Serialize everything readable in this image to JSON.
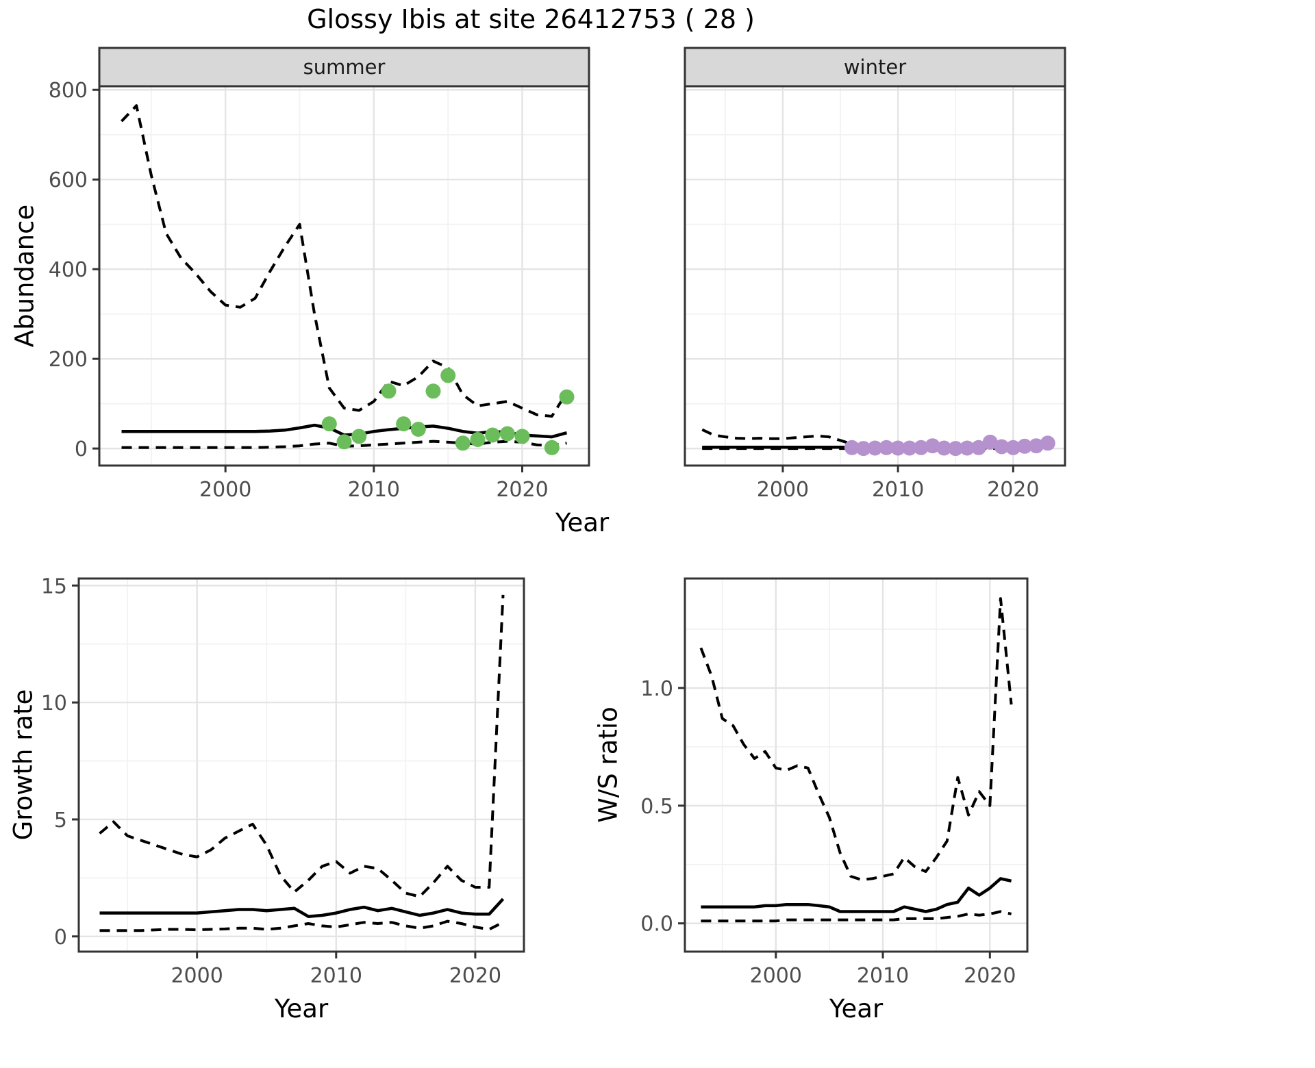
{
  "title": "Glossy Ibis at site 26412753 ( 28 )",
  "axes": {
    "x": "Year",
    "abundance": "Abundance",
    "growth": "Growth rate",
    "ws": "W/S ratio"
  },
  "facets": {
    "summer": "summer",
    "winter": "winter"
  },
  "colors": {
    "summer_point": "#6BBD5B",
    "winter_point": "#B592CE",
    "line": "#000000",
    "strip_bg": "#D8D8D8",
    "panel_bg": "#FFFFFF",
    "grid_major": "#E4E4E4",
    "grid_minor": "#F2F2F2",
    "border": "#333333",
    "tick_text": "#4D4D4D"
  },
  "chart_data": [
    {
      "id": "abundance_summer",
      "type": "line",
      "facet_label": "summer",
      "xlabel": "Year",
      "ylabel": "Abundance",
      "xlim": [
        1991.5,
        2024.5
      ],
      "ylim": [
        -38,
        808
      ],
      "xticks": {
        "values": [
          2000,
          2010,
          2020
        ],
        "labels": [
          "2000",
          "2010",
          "2020"
        ]
      },
      "yticks": {
        "values": [
          0,
          200,
          400,
          600,
          800
        ],
        "labels": [
          "0",
          "200",
          "400",
          "600",
          "800"
        ]
      },
      "xminor": [
        1995,
        2005,
        2015
      ],
      "yminor": [
        100,
        300,
        500,
        700
      ],
      "years": [
        1993,
        1994,
        1995,
        1996,
        1997,
        1998,
        1999,
        2000,
        2001,
        2002,
        2003,
        2004,
        2005,
        2006,
        2007,
        2008,
        2009,
        2010,
        2011,
        2012,
        2013,
        2014,
        2015,
        2016,
        2017,
        2018,
        2019,
        2020,
        2021,
        2022,
        2023
      ],
      "series": [
        {
          "name": "ci_upper",
          "style": "dashed",
          "values": [
            730,
            765,
            610,
            480,
            425,
            390,
            350,
            320,
            315,
            335,
            395,
            450,
            500,
            300,
            135,
            90,
            85,
            105,
            150,
            140,
            160,
            195,
            180,
            120,
            95,
            100,
            105,
            90,
            75,
            72,
            125
          ]
        },
        {
          "name": "median",
          "style": "solid",
          "values": [
            38,
            38,
            38,
            38,
            38,
            38,
            38,
            38,
            38,
            38,
            39,
            41,
            46,
            52,
            46,
            30,
            32,
            38,
            42,
            45,
            48,
            50,
            45,
            38,
            34,
            38,
            36,
            30,
            28,
            26,
            35
          ]
        },
        {
          "name": "ci_lower",
          "style": "dashed",
          "values": [
            2,
            2,
            2,
            2,
            2,
            2,
            2,
            2,
            2,
            2,
            3,
            4,
            6,
            10,
            12,
            5,
            6,
            8,
            10,
            12,
            14,
            16,
            14,
            12,
            10,
            14,
            16,
            14,
            8,
            7,
            12
          ]
        }
      ],
      "points": {
        "name": "observed_counts",
        "color": "#6BBD5B",
        "data": [
          [
            2007,
            55
          ],
          [
            2008,
            15
          ],
          [
            2009,
            27
          ],
          [
            2011,
            128
          ],
          [
            2012,
            55
          ],
          [
            2013,
            43
          ],
          [
            2014,
            128
          ],
          [
            2015,
            163
          ],
          [
            2016,
            12
          ],
          [
            2017,
            20
          ],
          [
            2018,
            30
          ],
          [
            2019,
            33
          ],
          [
            2020,
            27
          ],
          [
            2022,
            2
          ],
          [
            2023,
            115
          ]
        ]
      }
    },
    {
      "id": "abundance_winter",
      "type": "line",
      "facet_label": "winter",
      "xlabel": "Year",
      "ylabel": "Abundance",
      "xlim": [
        1991.5,
        2024.5
      ],
      "ylim": [
        -38,
        808
      ],
      "xticks": {
        "values": [
          2000,
          2010,
          2020
        ],
        "labels": [
          "2000",
          "2010",
          "2020"
        ]
      },
      "yticks": {
        "values": [
          0,
          200,
          400,
          600,
          800
        ],
        "labels": [
          "0",
          "200",
          "400",
          "600",
          "800"
        ]
      },
      "xminor": [
        1995,
        2005,
        2015
      ],
      "yminor": [
        100,
        300,
        500,
        700
      ],
      "years": [
        1993,
        1994,
        1995,
        1996,
        1997,
        1998,
        1999,
        2000,
        2001,
        2002,
        2003,
        2004,
        2005,
        2006,
        2007,
        2008,
        2009,
        2010,
        2011,
        2012,
        2013,
        2014,
        2015,
        2016,
        2017,
        2018,
        2019,
        2020,
        2021,
        2022,
        2023
      ],
      "series": [
        {
          "name": "ci_upper",
          "style": "dashed",
          "values": [
            42,
            30,
            26,
            23,
            22,
            23,
            22,
            22,
            24,
            26,
            28,
            26,
            18,
            10,
            8,
            7,
            7,
            7,
            7,
            8,
            10,
            7,
            6,
            6,
            7,
            15,
            8,
            8,
            9,
            10,
            16
          ]
        },
        {
          "name": "median",
          "style": "solid",
          "values": [
            3,
            3,
            3,
            3,
            3,
            3,
            3,
            3,
            3,
            3,
            3,
            3,
            3,
            2,
            2,
            2,
            2,
            2,
            2,
            2,
            2,
            2,
            2,
            2,
            2,
            3,
            3,
            3,
            3,
            4,
            5
          ]
        },
        {
          "name": "ci_lower",
          "style": "dashed",
          "values": [
            0,
            0,
            0,
            0,
            0,
            0,
            0,
            0,
            0,
            0,
            0,
            0,
            0,
            0,
            0,
            0,
            0,
            0,
            0,
            0,
            0,
            0,
            0,
            0,
            0,
            0,
            0,
            0,
            0,
            0,
            0
          ]
        }
      ],
      "points": {
        "name": "observed_counts",
        "color": "#B592CE",
        "data": [
          [
            2006,
            2
          ],
          [
            2007,
            0
          ],
          [
            2008,
            1
          ],
          [
            2009,
            2
          ],
          [
            2010,
            1
          ],
          [
            2011,
            1
          ],
          [
            2012,
            2
          ],
          [
            2013,
            6
          ],
          [
            2014,
            1
          ],
          [
            2015,
            0
          ],
          [
            2016,
            1
          ],
          [
            2017,
            2
          ],
          [
            2018,
            14
          ],
          [
            2019,
            4
          ],
          [
            2020,
            2
          ],
          [
            2021,
            5
          ],
          [
            2022,
            6
          ],
          [
            2023,
            12
          ]
        ]
      }
    },
    {
      "id": "growth_rate",
      "type": "line",
      "facet_label": null,
      "xlabel": "Year",
      "ylabel": "Growth rate",
      "xlim": [
        1991.5,
        2023.5
      ],
      "ylim": [
        -0.65,
        15.3
      ],
      "xticks": {
        "values": [
          2000,
          2010,
          2020
        ],
        "labels": [
          "2000",
          "2010",
          "2020"
        ]
      },
      "yticks": {
        "values": [
          0,
          5,
          10,
          15
        ],
        "labels": [
          "0",
          "5",
          "10",
          "15"
        ]
      },
      "xminor": [
        1995,
        2005,
        2015
      ],
      "yminor": [
        2.5,
        7.5,
        12.5
      ],
      "years": [
        1993,
        1994,
        1995,
        1996,
        1997,
        1998,
        1999,
        2000,
        2001,
        2002,
        2003,
        2004,
        2005,
        2006,
        2007,
        2008,
        2009,
        2010,
        2011,
        2012,
        2013,
        2014,
        2015,
        2016,
        2017,
        2018,
        2019,
        2020,
        2021,
        2022
      ],
      "series": [
        {
          "name": "ci_upper",
          "style": "dashed",
          "values": [
            4.4,
            4.9,
            4.3,
            4.1,
            3.9,
            3.7,
            3.5,
            3.4,
            3.7,
            4.2,
            4.5,
            4.8,
            3.9,
            2.6,
            1.9,
            2.4,
            3.0,
            3.2,
            2.7,
            3.0,
            2.9,
            2.4,
            1.85,
            1.7,
            2.3,
            3.0,
            2.4,
            2.1,
            2.1,
            14.6
          ]
        },
        {
          "name": "median",
          "style": "solid",
          "values": [
            1.0,
            1.0,
            1.0,
            1.0,
            1.0,
            1.0,
            1.0,
            1.0,
            1.05,
            1.1,
            1.15,
            1.15,
            1.1,
            1.15,
            1.2,
            0.85,
            0.9,
            1.0,
            1.15,
            1.25,
            1.1,
            1.2,
            1.05,
            0.9,
            1.0,
            1.15,
            1.0,
            0.95,
            0.95,
            1.6
          ]
        },
        {
          "name": "ci_lower",
          "style": "dashed",
          "values": [
            0.25,
            0.25,
            0.25,
            0.25,
            0.28,
            0.3,
            0.3,
            0.28,
            0.3,
            0.32,
            0.35,
            0.35,
            0.3,
            0.35,
            0.45,
            0.55,
            0.45,
            0.4,
            0.5,
            0.6,
            0.55,
            0.6,
            0.45,
            0.35,
            0.45,
            0.65,
            0.55,
            0.4,
            0.3,
            0.6
          ]
        }
      ],
      "points": null
    },
    {
      "id": "ws_ratio",
      "type": "line",
      "facet_label": null,
      "xlabel": "Year",
      "ylabel": "W/S ratio",
      "xlim": [
        1991.5,
        2023.5
      ],
      "ylim": [
        -0.12,
        1.465
      ],
      "xticks": {
        "values": [
          2000,
          2010,
          2020
        ],
        "labels": [
          "2000",
          "2010",
          "2020"
        ]
      },
      "yticks": {
        "values": [
          0.0,
          0.5,
          1.0
        ],
        "labels": [
          "0.0",
          "0.5",
          "1.0"
        ]
      },
      "xminor": [
        1995,
        2005,
        2015
      ],
      "yminor": [
        0.25,
        0.75,
        1.25
      ],
      "years": [
        1993,
        1994,
        1995,
        1996,
        1997,
        1998,
        1999,
        2000,
        2001,
        2002,
        2003,
        2004,
        2005,
        2006,
        2007,
        2008,
        2009,
        2010,
        2011,
        2012,
        2013,
        2014,
        2015,
        2016,
        2017,
        2018,
        2019,
        2020,
        2021,
        2022
      ],
      "series": [
        {
          "name": "ci_upper",
          "style": "dashed",
          "values": [
            1.17,
            1.05,
            0.87,
            0.84,
            0.76,
            0.7,
            0.73,
            0.66,
            0.65,
            0.67,
            0.66,
            0.55,
            0.45,
            0.3,
            0.2,
            0.185,
            0.19,
            0.2,
            0.21,
            0.28,
            0.24,
            0.22,
            0.28,
            0.35,
            0.62,
            0.46,
            0.56,
            0.5,
            1.38,
            0.93
          ]
        },
        {
          "name": "median",
          "style": "solid",
          "values": [
            0.07,
            0.07,
            0.07,
            0.07,
            0.07,
            0.07,
            0.075,
            0.075,
            0.08,
            0.08,
            0.08,
            0.075,
            0.07,
            0.05,
            0.05,
            0.05,
            0.05,
            0.05,
            0.05,
            0.07,
            0.06,
            0.05,
            0.06,
            0.08,
            0.09,
            0.15,
            0.12,
            0.15,
            0.19,
            0.18
          ]
        },
        {
          "name": "ci_lower",
          "style": "dashed",
          "values": [
            0.01,
            0.01,
            0.01,
            0.01,
            0.01,
            0.01,
            0.01,
            0.01,
            0.015,
            0.015,
            0.015,
            0.015,
            0.015,
            0.015,
            0.015,
            0.015,
            0.015,
            0.015,
            0.015,
            0.02,
            0.02,
            0.02,
            0.02,
            0.025,
            0.03,
            0.04,
            0.035,
            0.04,
            0.05,
            0.04
          ]
        }
      ],
      "points": null
    }
  ]
}
